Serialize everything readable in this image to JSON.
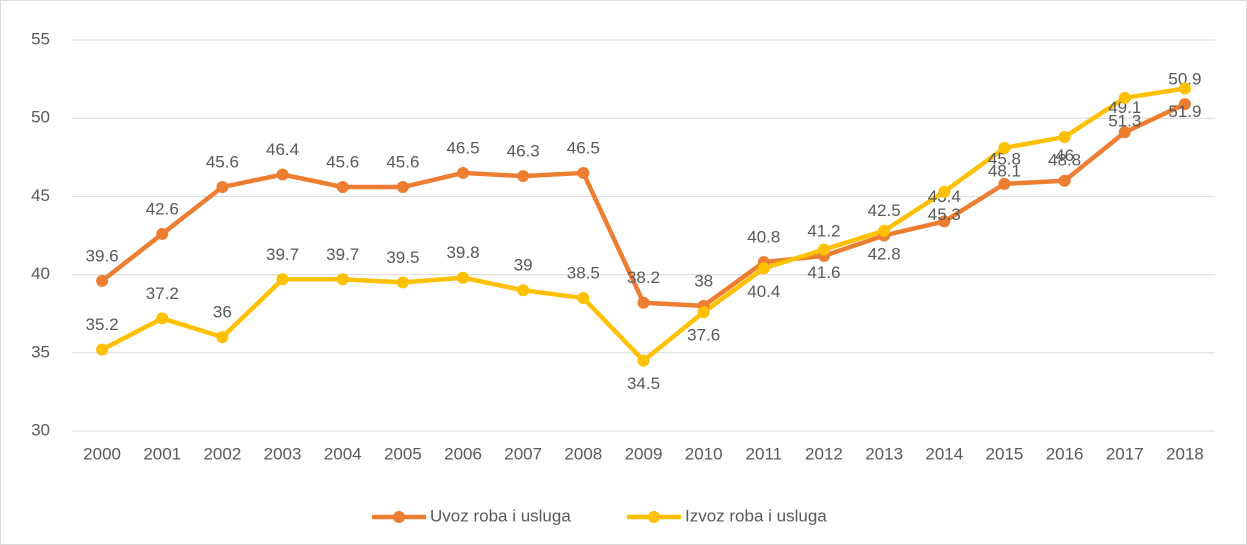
{
  "chart_data": {
    "type": "line",
    "categories": [
      "2000",
      "2001",
      "2002",
      "2003",
      "2004",
      "2005",
      "2006",
      "2007",
      "2008",
      "2009",
      "2010",
      "2011",
      "2012",
      "2013",
      "2014",
      "2015",
      "2016",
      "2017",
      "2018"
    ],
    "series": [
      {
        "name": "Uvoz roba i usluga",
        "color": "#ed7d31",
        "values": [
          39.6,
          42.6,
          45.6,
          46.4,
          45.6,
          45.6,
          46.5,
          46.3,
          46.5,
          38.2,
          38,
          40.8,
          41.2,
          42.5,
          43.4,
          45.8,
          46,
          49.1,
          50.9
        ]
      },
      {
        "name": "Izvoz roba i usluga",
        "color": "#ffc000",
        "values": [
          35.2,
          37.2,
          36,
          39.7,
          39.7,
          39.5,
          39.8,
          39,
          38.5,
          34.5,
          37.6,
          40.4,
          41.6,
          42.8,
          45.3,
          48.1,
          48.8,
          51.3,
          51.9
        ]
      }
    ],
    "ylim": [
      30,
      55
    ],
    "yticks": [
      30,
      35,
      40,
      45,
      50,
      55
    ],
    "grid": true,
    "legend": "bottom"
  }
}
